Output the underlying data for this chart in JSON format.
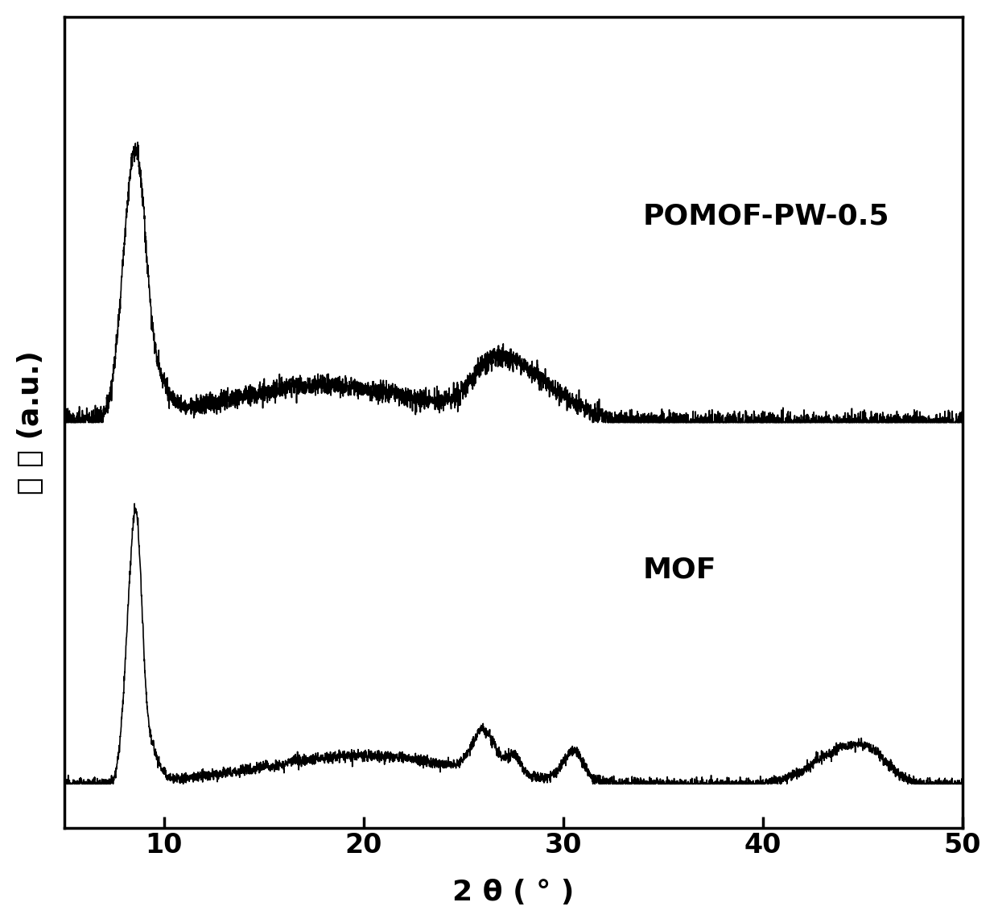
{
  "xlabel": "2 θ ( ° )",
  "ylabel": "强 度 (a.u.)",
  "xlim": [
    5,
    50
  ],
  "xticks": [
    10,
    20,
    30,
    40,
    50
  ],
  "line_color": "#000000",
  "background_color": "#ffffff",
  "label_pomof": "POMOF-PW-0.5",
  "label_mof": "MOF",
  "label_fontsize": 26,
  "tick_fontsize": 24,
  "axis_label_fontsize": 26,
  "ylabel_fontsize": 26,
  "line_width": 1.2
}
